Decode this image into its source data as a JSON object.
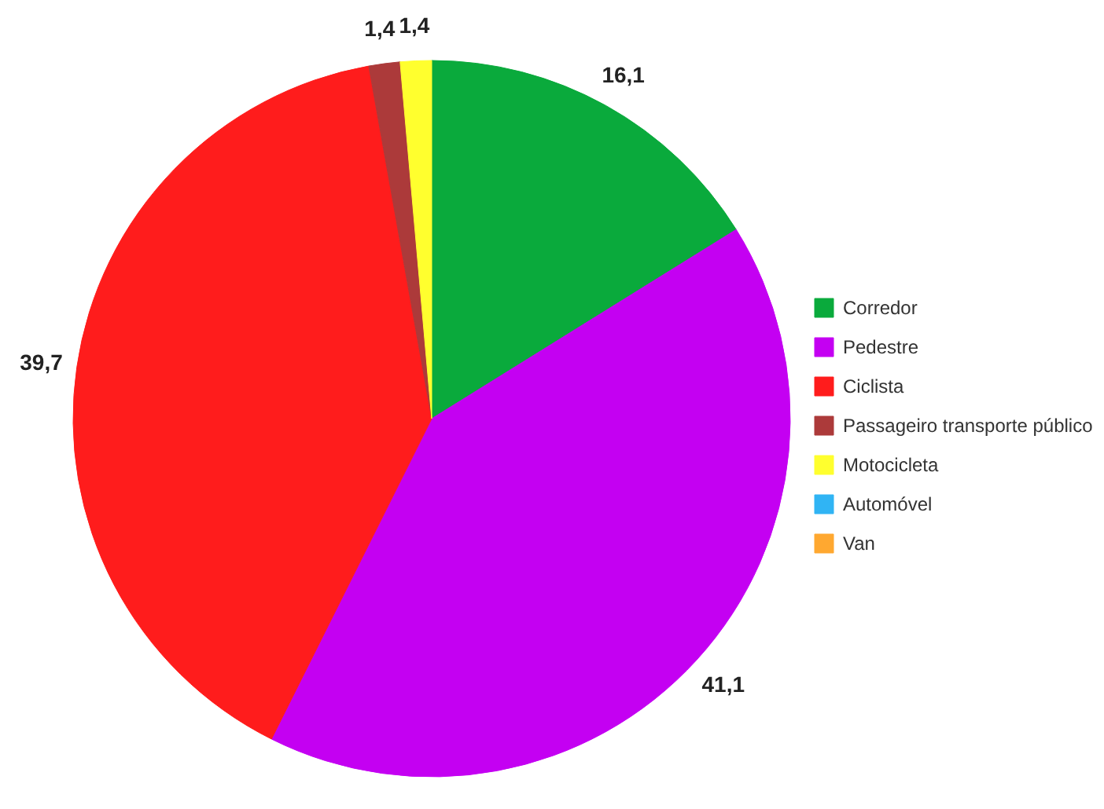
{
  "chart_data": {
    "type": "pie",
    "categories": [
      "Corredor",
      "Pedestre",
      "Ciclista",
      "Passageiro transporte público",
      "Motocicleta",
      "Automóvel",
      "Van"
    ],
    "values": [
      16.1,
      41.1,
      39.7,
      1.4,
      1.4,
      0,
      0
    ],
    "value_labels": [
      "16,1",
      "41,1",
      "39,7",
      "1,4",
      "1,4",
      null,
      null
    ],
    "colors": [
      "#0aaa3c",
      "#c400f2",
      "#ff1c1c",
      "#ac3a3a",
      "#ffff2e",
      "#30b4f4",
      "#ffa830"
    ],
    "legend": "right"
  }
}
